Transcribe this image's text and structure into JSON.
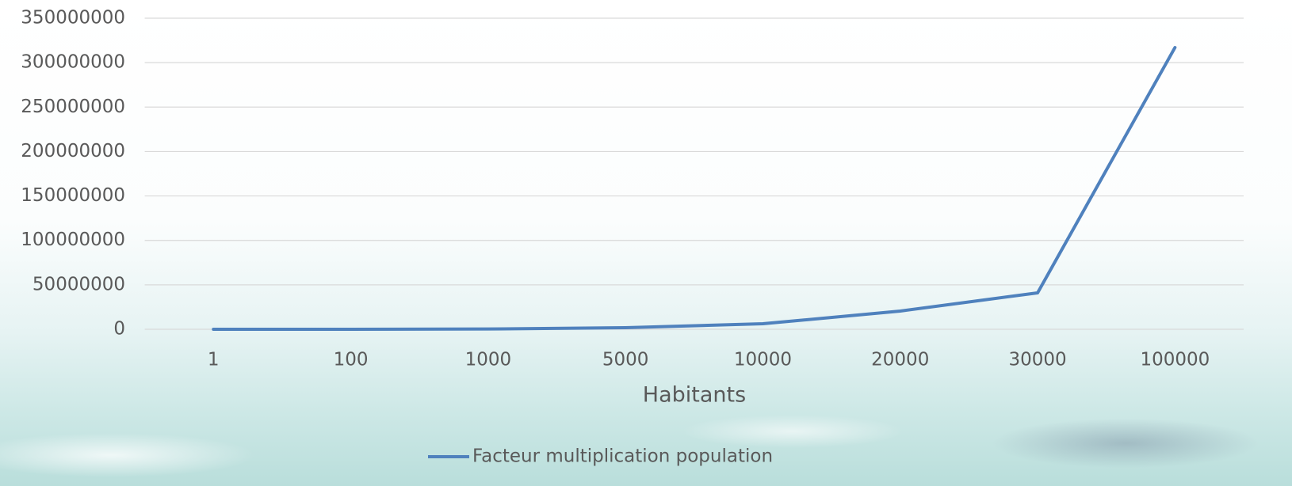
{
  "chart_data": {
    "type": "line",
    "x_label": "Habitants",
    "categories": [
      "1",
      "100",
      "1000",
      "5000",
      "10000",
      "20000",
      "30000",
      "100000"
    ],
    "series": [
      {
        "name": "Facteur multiplication population",
        "color": "#4f81bd",
        "values": [
          0,
          10000,
          300000,
          1800000,
          6200000,
          20500000,
          41000000,
          317000000
        ]
      }
    ],
    "ylim": [
      0,
      350000000
    ],
    "yticks": [
      0,
      50000000,
      100000000,
      150000000,
      200000000,
      250000000,
      300000000,
      350000000
    ],
    "grid": true
  }
}
